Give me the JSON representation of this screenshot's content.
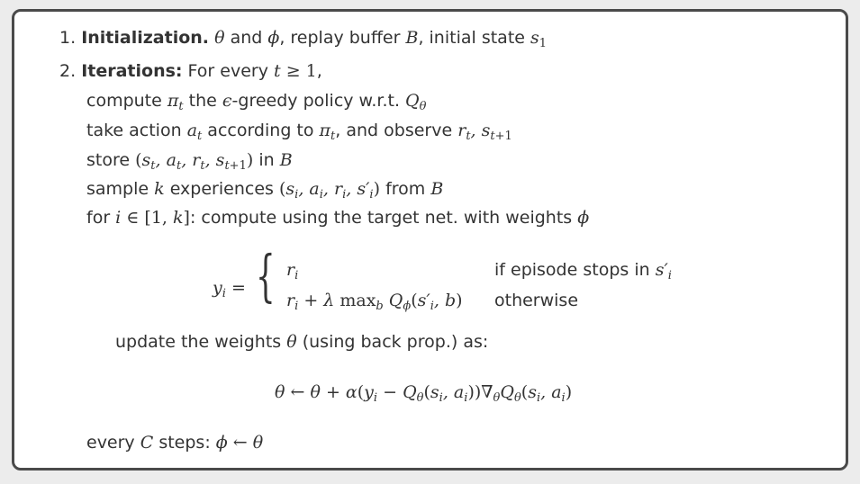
{
  "steps": [
    {
      "number": "1.",
      "title": "Initialization.",
      "rest": " and , replay buffer , initial state ",
      "math_theta": "θ",
      "math_phi": "ϕ",
      "math_B": "B",
      "math_s1": "s"
    },
    {
      "number": "2.",
      "title": "Iterations:",
      "rest": " For every "
    }
  ],
  "text": {
    "for_every": "For every",
    "t_ge_1": "t ≥ 1,",
    "compute": "compute",
    "pi_t": "π",
    "the_greedy": "the ε-greedy policy w.r.t.",
    "Q_theta": "Q",
    "take_action": "take action",
    "a_t": "a",
    "according_to": "according to",
    "and_observe": ", and observe",
    "r_t": "r",
    "s_t1": "s",
    "store": "store",
    "store_tuple": "(s",
    "in": "in",
    "B": "B",
    "sample": "sample",
    "k": "k",
    "experiences": "experiences",
    "from": "from",
    "for": "for",
    "i_in": "i ∈ [1, k]",
    "compute_target": ": compute using the target net. with weights",
    "phi": "ϕ",
    "y_i": "y",
    "eq": "=",
    "case1_expr": "r",
    "case1_cond": "if episode stops in",
    "case2_expr": "r",
    "case2_cond": "otherwise",
    "update": "update the weights",
    "update_rest": "(using back prop.) as:",
    "theta": "θ",
    "every": "every",
    "C": "C",
    "steps": "steps:"
  }
}
